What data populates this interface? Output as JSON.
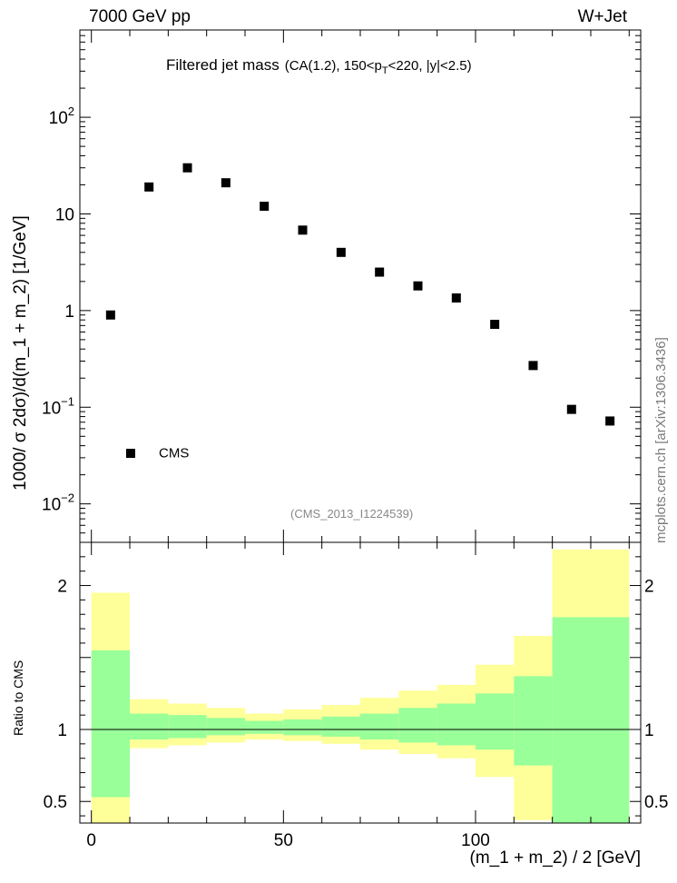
{
  "header": {
    "left_label": "7000 GeV pp",
    "right_label": "W+Jet"
  },
  "side_note": "mcplots.cern.ch [arXiv:1306.3436]",
  "plot_title": {
    "main": "Filtered jet mass",
    "cut_prefix": "(CA(1.2), 150<p",
    "cut_subscript": "T",
    "cut_suffix": "<220, |y|<2.5)"
  },
  "reference_tag": "(CMS_2013_I1224539)",
  "colors": {
    "marker": "#000000",
    "band_outer": "#ffff99",
    "band_inner": "#99ff99",
    "ref_line": "#000000",
    "reference_text": "#888888",
    "side_note_text": "#7a7a7a"
  },
  "chart_data": [
    {
      "type": "scatter",
      "title": "Filtered jet mass (CA(1.2), 150<pT<220, |y|<2.5)",
      "ylabel": "1000/ σ 2dσ)/d(m_1 + m_2) [1/GeV]",
      "yscale": "log",
      "ylim": [
        0.004,
        800
      ],
      "xlim": [
        -3,
        143
      ],
      "y_ticks": [
        {
          "value": 0.01,
          "base": "10",
          "exp": "−2"
        },
        {
          "value": 0.1,
          "base": "10",
          "exp": "−1"
        },
        {
          "value": 1,
          "base": "1",
          "exp": ""
        },
        {
          "value": 10,
          "base": "10",
          "exp": ""
        },
        {
          "value": 100,
          "base": "10",
          "exp": "2"
        }
      ],
      "legend": {
        "position": "bottom-left",
        "entries": [
          "CMS"
        ]
      },
      "series": [
        {
          "name": "CMS",
          "x": [
            5,
            15,
            25,
            35,
            45,
            55,
            65,
            75,
            85,
            95,
            105,
            115,
            125,
            135
          ],
          "y": [
            0.9,
            19,
            30,
            21,
            12,
            6.8,
            4.0,
            2.5,
            1.8,
            1.35,
            0.72,
            0.27,
            0.095,
            0.072
          ]
        }
      ]
    },
    {
      "type": "area",
      "ylabel": "Ratio to CMS",
      "xlabel": "(m_1 + m_2) / 2 [GeV]",
      "ylim": [
        0.35,
        2.3
      ],
      "xlim": [
        -3,
        143
      ],
      "x_ticks": [
        0,
        50,
        100
      ],
      "y_ticks": [
        0.5,
        1,
        2
      ],
      "reference_line": 1,
      "bins": [
        {
          "x0": 0,
          "x1": 10,
          "outer": [
            0.35,
            1.95
          ],
          "inner": [
            0.53,
            1.55
          ]
        },
        {
          "x0": 10,
          "x1": 20,
          "outer": [
            0.87,
            1.21
          ],
          "inner": [
            0.93,
            1.11
          ]
        },
        {
          "x0": 20,
          "x1": 30,
          "outer": [
            0.89,
            1.18
          ],
          "inner": [
            0.94,
            1.1
          ]
        },
        {
          "x0": 30,
          "x1": 40,
          "outer": [
            0.91,
            1.15
          ],
          "inner": [
            0.96,
            1.08
          ]
        },
        {
          "x0": 40,
          "x1": 50,
          "outer": [
            0.93,
            1.11
          ],
          "inner": [
            0.97,
            1.06
          ]
        },
        {
          "x0": 50,
          "x1": 60,
          "outer": [
            0.92,
            1.14
          ],
          "inner": [
            0.96,
            1.07
          ]
        },
        {
          "x0": 60,
          "x1": 70,
          "outer": [
            0.9,
            1.17
          ],
          "inner": [
            0.95,
            1.09
          ]
        },
        {
          "x0": 70,
          "x1": 80,
          "outer": [
            0.86,
            1.22
          ],
          "inner": [
            0.93,
            1.11
          ]
        },
        {
          "x0": 80,
          "x1": 90,
          "outer": [
            0.83,
            1.27
          ],
          "inner": [
            0.91,
            1.15
          ]
        },
        {
          "x0": 90,
          "x1": 100,
          "outer": [
            0.8,
            1.31
          ],
          "inner": [
            0.89,
            1.18
          ]
        },
        {
          "x0": 100,
          "x1": 110,
          "outer": [
            0.67,
            1.45
          ],
          "inner": [
            0.86,
            1.25
          ]
        },
        {
          "x0": 110,
          "x1": 120,
          "outer": [
            0.37,
            1.65
          ],
          "inner": [
            0.75,
            1.37
          ]
        },
        {
          "x0": 120,
          "x1": 140,
          "outer": [
            0.35,
            2.25
          ],
          "inner": [
            0.35,
            1.78
          ]
        }
      ]
    }
  ]
}
